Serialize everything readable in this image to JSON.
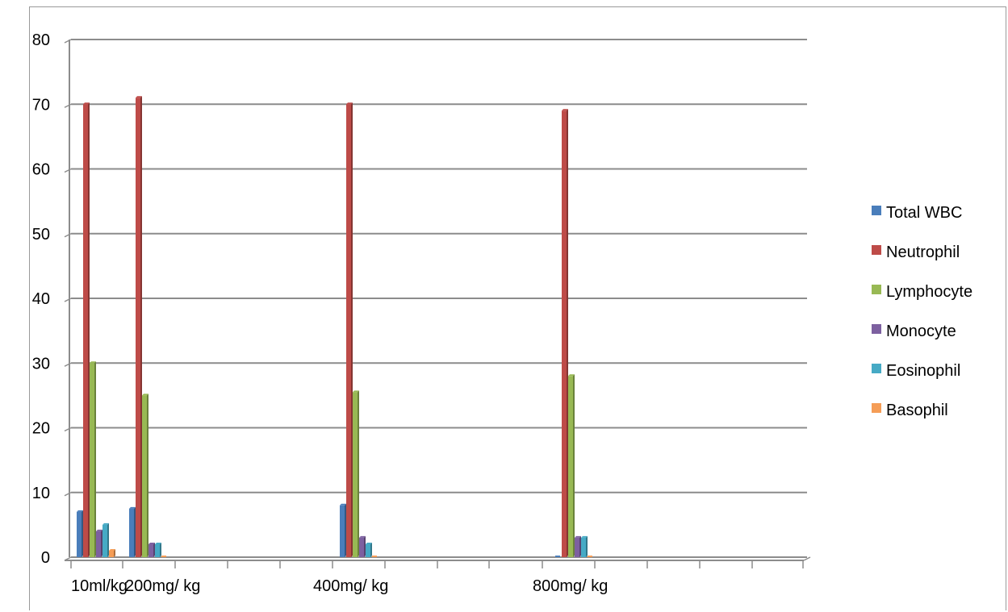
{
  "chart_data": {
    "type": "bar",
    "title": "",
    "xlabel": "",
    "ylabel": "",
    "ylim": [
      0,
      80
    ],
    "yticks": [
      0,
      10,
      20,
      30,
      40,
      50,
      60,
      70,
      80
    ],
    "grid": true,
    "legend_position": "right",
    "x_tick_labels": [
      "10ml/kg",
      "200mg/ kg",
      "400mg/ kg",
      "800mg/ kg"
    ],
    "groups": [
      {
        "label": "10ml/kg",
        "values": [
          7,
          70,
          30,
          4,
          5,
          1
        ]
      },
      {
        "label": "200mg/ kg",
        "values": [
          7.5,
          71,
          25,
          2,
          2,
          0
        ]
      },
      {
        "label": "400mg/ kg",
        "values": [
          8,
          70,
          25.5,
          3,
          2,
          0
        ]
      },
      {
        "label": "800mg/ kg",
        "values": [
          0,
          69,
          28,
          3,
          3,
          0
        ]
      }
    ],
    "series": [
      {
        "name": "Total WBC",
        "color": "#4a7ebb",
        "values": [
          7,
          7.5,
          8,
          0
        ]
      },
      {
        "name": "Neutrophil",
        "color": "#be4b48",
        "values": [
          70,
          71,
          70,
          69
        ]
      },
      {
        "name": "Lymphocyte",
        "color": "#98b954",
        "values": [
          30,
          25,
          25.5,
          28
        ]
      },
      {
        "name": "Monocyte",
        "color": "#7d60a0",
        "values": [
          4,
          2,
          3,
          3
        ]
      },
      {
        "name": "Eosinophil",
        "color": "#46aac5",
        "values": [
          5,
          2,
          2,
          3
        ]
      },
      {
        "name": "Basophil",
        "color": "#f59d56",
        "values": [
          1,
          0,
          0,
          0
        ]
      }
    ]
  }
}
